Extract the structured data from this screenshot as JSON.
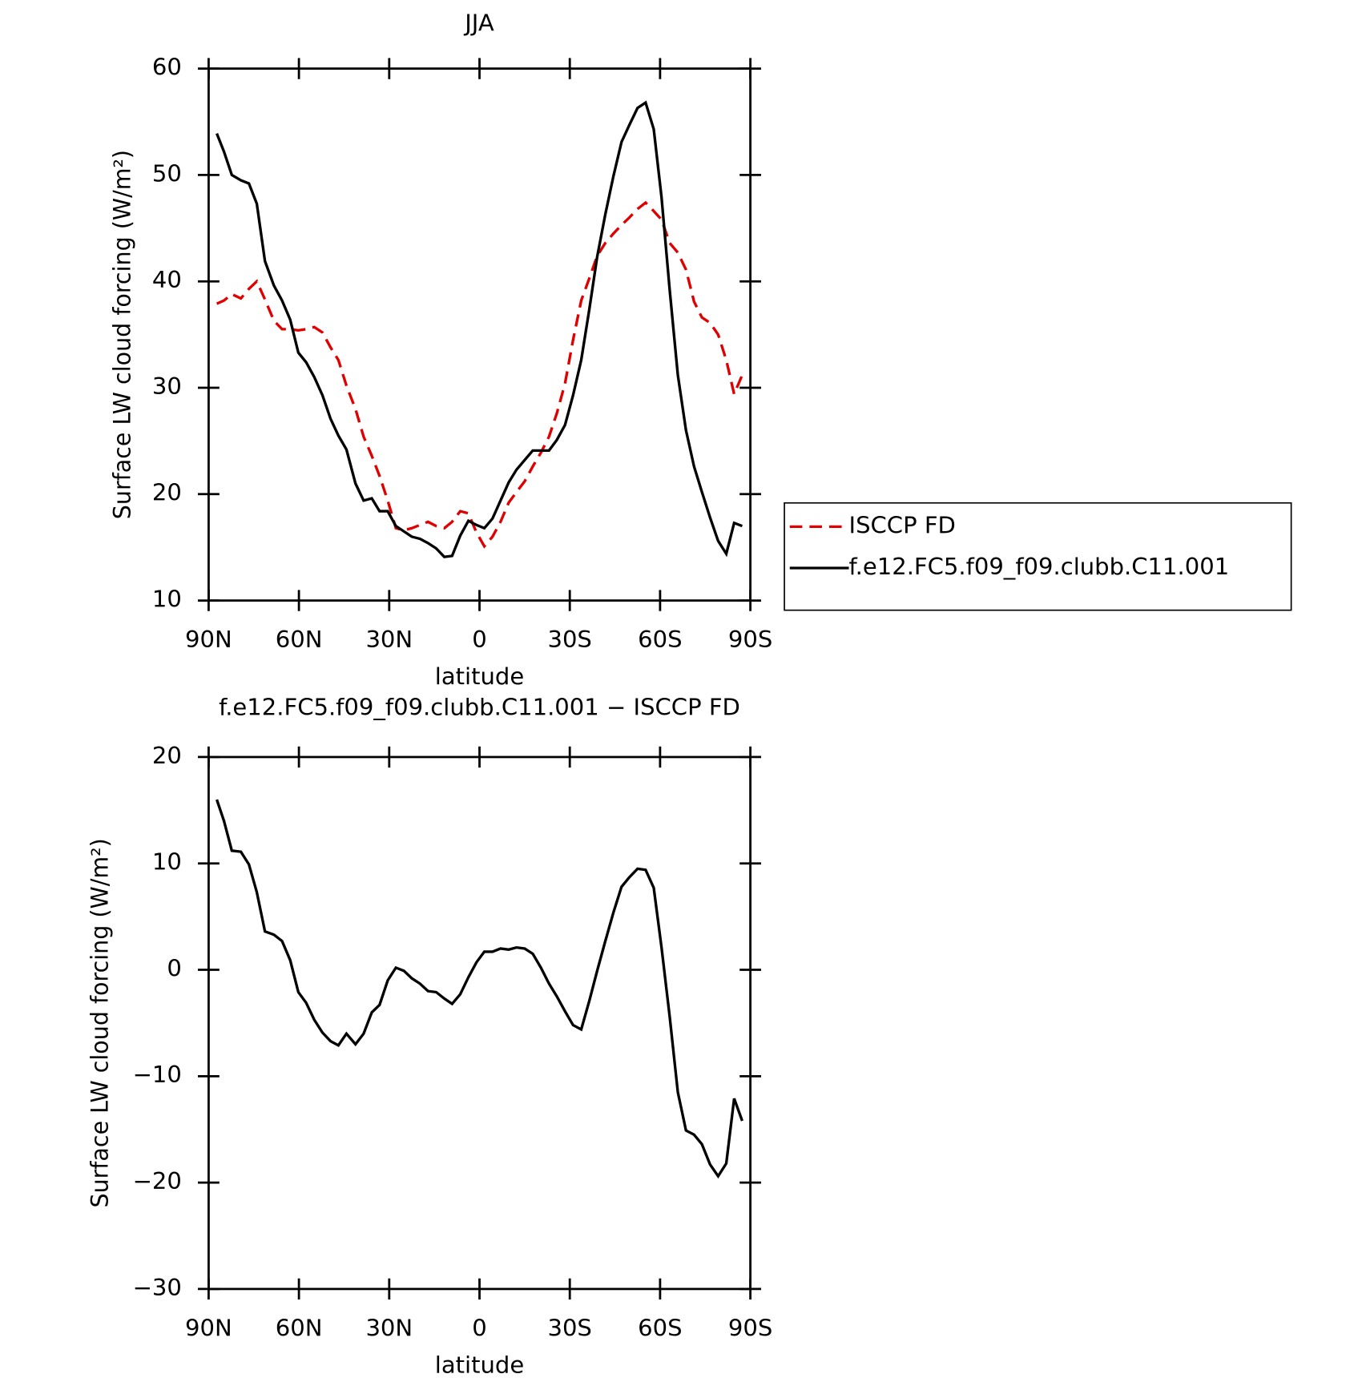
{
  "chart_data": [
    {
      "type": "line",
      "title": "JJA",
      "xlabel": "latitude",
      "ylabel": "Surface LW cloud forcing (W/m²)",
      "x": [
        87.3,
        84.9,
        82.3,
        79.3,
        76.6,
        74.0,
        71.3,
        68.3,
        65.6,
        62.9,
        60.2,
        57.6,
        54.9,
        52.2,
        49.5,
        46.9,
        44.2,
        41.2,
        38.5,
        35.8,
        33.2,
        30.5,
        27.8,
        25.1,
        22.5,
        19.8,
        17.1,
        14.4,
        11.7,
        9.1,
        6.4,
        3.7,
        1.0,
        -1.6,
        -4.3,
        -7.0,
        -9.7,
        -12.3,
        -15.0,
        -17.7,
        -20.4,
        -23.1,
        -25.7,
        -28.4,
        -31.1,
        -33.8,
        -36.5,
        -39.1,
        -41.8,
        -44.5,
        -47.2,
        -49.8,
        -52.5,
        -55.2,
        -57.9,
        -60.5,
        -63.2,
        -65.9,
        -68.6,
        -71.3,
        -73.9,
        -76.6,
        -79.3,
        -82.0,
        -84.6,
        -87.3
      ],
      "series": [
        {
          "name": "ISCCP FD",
          "color": "#e00000",
          "dash": "dashed",
          "values": [
            37.9,
            38.2,
            38.8,
            38.4,
            39.3,
            40.0,
            38.3,
            36.3,
            35.5,
            35.5,
            35.4,
            35.5,
            35.7,
            35.2,
            33.8,
            32.6,
            30.2,
            28.0,
            25.4,
            23.6,
            21.7,
            19.4,
            16.8,
            16.6,
            16.8,
            17.1,
            17.4,
            17.0,
            16.8,
            17.4,
            18.4,
            18.2,
            16.4,
            15.1,
            16.0,
            17.4,
            19.2,
            20.2,
            21.2,
            22.6,
            23.9,
            25.4,
            27.6,
            30.4,
            34.5,
            38.2,
            40.3,
            42.4,
            43.6,
            44.5,
            45.3,
            46.0,
            46.8,
            47.4,
            46.6,
            45.8,
            43.6,
            42.7,
            41.1,
            38.1,
            36.6,
            36.1,
            35.0,
            32.6,
            29.4,
            31.2
          ]
        },
        {
          "name": "f.e12.FC5.f09_f09.clubb.C11.001",
          "color": "#000000",
          "dash": "solid",
          "values": [
            53.9,
            52.2,
            50.0,
            49.5,
            49.2,
            47.3,
            41.9,
            39.6,
            38.2,
            36.4,
            33.3,
            32.4,
            31.0,
            29.3,
            27.1,
            25.5,
            24.2,
            21.0,
            19.4,
            19.6,
            18.4,
            18.4,
            17.0,
            16.5,
            16.0,
            15.8,
            15.4,
            14.9,
            14.1,
            14.2,
            16.1,
            17.5,
            17.1,
            16.8,
            17.7,
            19.4,
            21.1,
            22.3,
            23.2,
            24.1,
            24.1,
            24.1,
            25.1,
            26.5,
            29.3,
            32.6,
            37.4,
            42.3,
            46.3,
            49.9,
            53.1,
            54.7,
            56.3,
            56.8,
            54.3,
            47.9,
            39.2,
            31.2,
            26.0,
            22.6,
            20.2,
            17.8,
            15.6,
            14.4,
            17.3,
            17.0
          ]
        }
      ],
      "xlim": [
        90,
        -90
      ],
      "xticks": [
        {
          "value": 90,
          "label": "90N"
        },
        {
          "value": 60,
          "label": "60N"
        },
        {
          "value": 30,
          "label": "30N"
        },
        0,
        {
          "value": -30,
          "label": "30S"
        },
        {
          "value": -60,
          "label": "60S"
        },
        {
          "value": -90,
          "label": "90S"
        }
      ],
      "ylim": [
        10,
        60
      ],
      "yticks": [
        10,
        20,
        30,
        40,
        50,
        60
      ],
      "legend": "right"
    },
    {
      "type": "line",
      "title": "f.e12.FC5.f09_f09.clubb.C11.001 − ISCCP FD",
      "xlabel": "latitude",
      "ylabel": "Surface LW cloud forcing (W/m²)",
      "x": [
        87.3,
        84.9,
        82.3,
        79.3,
        76.6,
        74.0,
        71.3,
        68.3,
        65.6,
        62.9,
        60.2,
        57.6,
        54.9,
        52.2,
        49.5,
        46.9,
        44.2,
        41.2,
        38.5,
        35.8,
        33.2,
        30.5,
        27.8,
        25.1,
        22.5,
        19.8,
        17.1,
        14.4,
        11.7,
        9.1,
        6.4,
        3.7,
        1.0,
        -1.6,
        -4.3,
        -7.0,
        -9.7,
        -12.3,
        -15.0,
        -17.7,
        -20.4,
        -23.1,
        -25.7,
        -28.4,
        -31.1,
        -33.8,
        -36.5,
        -39.1,
        -41.8,
        -44.5,
        -47.2,
        -49.8,
        -52.5,
        -55.2,
        -57.9,
        -60.5,
        -63.2,
        -65.9,
        -68.6,
        -71.3,
        -73.9,
        -76.6,
        -79.3,
        -82.0,
        -84.6,
        -87.3
      ],
      "color": "#000000",
      "values": [
        16.0,
        14.0,
        11.2,
        11.1,
        9.9,
        7.3,
        3.6,
        3.3,
        2.7,
        0.9,
        -2.1,
        -3.1,
        -4.7,
        -5.9,
        -6.7,
        -7.1,
        -6.0,
        -7.0,
        -6.0,
        -4.0,
        -3.3,
        -1.0,
        0.2,
        -0.1,
        -0.8,
        -1.3,
        -2.0,
        -2.1,
        -2.7,
        -3.2,
        -2.3,
        -0.7,
        0.7,
        1.7,
        1.7,
        2.0,
        1.9,
        2.1,
        2.0,
        1.5,
        0.2,
        -1.3,
        -2.5,
        -3.9,
        -5.2,
        -5.6,
        -2.9,
        -0.1,
        2.7,
        5.4,
        7.8,
        8.7,
        9.5,
        9.4,
        7.7,
        2.1,
        -4.4,
        -11.5,
        -15.1,
        -15.5,
        -16.4,
        -18.3,
        -19.4,
        -18.2,
        -12.1,
        -14.2
      ],
      "xlim": [
        90,
        -90
      ],
      "xticks": [
        {
          "value": 90,
          "label": "90N"
        },
        {
          "value": 60,
          "label": "60N"
        },
        {
          "value": 30,
          "label": "30N"
        },
        0,
        {
          "value": -30,
          "label": "30S"
        },
        {
          "value": -60,
          "label": "60S"
        },
        {
          "value": -90,
          "label": "90S"
        }
      ],
      "ylim": [
        -30,
        20
      ],
      "yticks": [
        {
          "value": -30,
          "label": "−30"
        },
        {
          "value": -20,
          "label": "−20"
        },
        {
          "value": -10,
          "label": "−10"
        },
        0,
        10,
        20
      ]
    }
  ]
}
